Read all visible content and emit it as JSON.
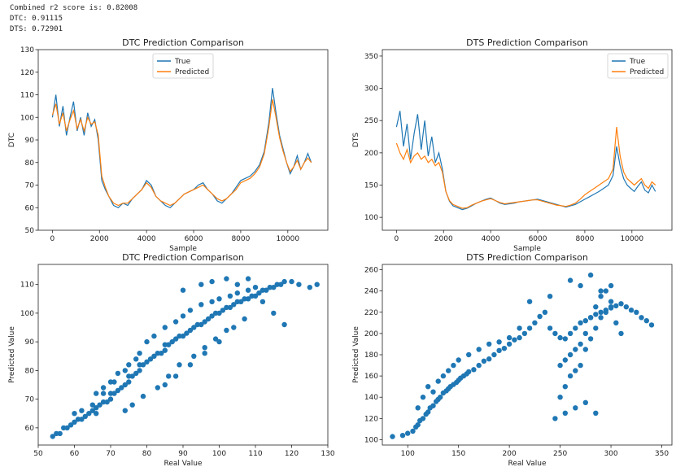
{
  "console": {
    "lines": [
      "Combined r2 score is: 0.82008",
      "DTC: 0.91115",
      "DTS: 0.72901"
    ]
  },
  "colors": {
    "true": "#1f77b4",
    "predicted": "#ff7f0e",
    "scatter": "#1f77b4"
  },
  "chart_data": [
    {
      "id": "dtc-line",
      "type": "line",
      "title": "DTC Prediction Comparison",
      "xlabel": "Sample",
      "ylabel": "DTC",
      "xlim": [
        -600,
        11700
      ],
      "ylim": [
        50,
        130
      ],
      "xticks": [
        0,
        2000,
        4000,
        6000,
        8000,
        10000
      ],
      "yticks": [
        50,
        60,
        70,
        80,
        90,
        100,
        110,
        120,
        130
      ],
      "legend": "top-center",
      "series": [
        {
          "name": "True",
          "x": [
            0,
            150,
            300,
            450,
            600,
            750,
            900,
            1050,
            1200,
            1350,
            1500,
            1650,
            1800,
            1950,
            2100,
            2250,
            2400,
            2600,
            2800,
            3000,
            3200,
            3400,
            3600,
            3800,
            4000,
            4200,
            4400,
            4600,
            4800,
            5000,
            5200,
            5400,
            5600,
            5800,
            6000,
            6200,
            6400,
            6600,
            6800,
            7000,
            7200,
            7400,
            7600,
            7800,
            8000,
            8200,
            8400,
            8600,
            8800,
            9000,
            9200,
            9350,
            9500,
            9650,
            9800,
            9950,
            10100,
            10250,
            10400,
            10550,
            10700,
            10850,
            11000
          ],
          "y": [
            100,
            110,
            96,
            105,
            92,
            100,
            107,
            94,
            100,
            92,
            102,
            96,
            99,
            90,
            72,
            68,
            65,
            61,
            60,
            62,
            61,
            64,
            66,
            68,
            72,
            70,
            65,
            63,
            61,
            60,
            62,
            64,
            66,
            67,
            68,
            70,
            71,
            68,
            66,
            63,
            62,
            64,
            66,
            69,
            72,
            73,
            74,
            76,
            79,
            85,
            98,
            113,
            102,
            92,
            86,
            80,
            75,
            78,
            83,
            77,
            80,
            84,
            80
          ]
        },
        {
          "name": "Predicted",
          "x": [
            0,
            150,
            300,
            450,
            600,
            750,
            900,
            1050,
            1200,
            1350,
            1500,
            1650,
            1800,
            1950,
            2100,
            2250,
            2400,
            2600,
            2800,
            3000,
            3200,
            3400,
            3600,
            3800,
            4000,
            4200,
            4400,
            4600,
            4800,
            5000,
            5200,
            5400,
            5600,
            5800,
            6000,
            6200,
            6400,
            6600,
            6800,
            7000,
            7200,
            7400,
            7600,
            7800,
            8000,
            8200,
            8400,
            8600,
            8800,
            9000,
            9200,
            9350,
            9500,
            9650,
            9800,
            9950,
            10100,
            10250,
            10400,
            10550,
            10700,
            10850,
            11000
          ],
          "y": [
            101,
            106,
            97,
            102,
            94,
            99,
            103,
            95,
            99,
            94,
            100,
            97,
            98,
            92,
            74,
            69,
            65,
            62,
            61,
            62,
            62,
            64,
            66,
            68,
            71,
            69,
            65,
            63,
            62,
            61,
            62,
            64,
            66,
            67,
            68,
            69,
            70,
            68,
            66,
            64,
            63,
            64,
            66,
            68,
            71,
            72,
            73,
            75,
            78,
            84,
            96,
            108,
            100,
            91,
            85,
            80,
            76,
            78,
            81,
            77,
            80,
            82,
            80
          ]
        }
      ]
    },
    {
      "id": "dts-line",
      "type": "line",
      "title": "DTS Prediction Comparison",
      "xlabel": "Sample",
      "ylabel": "DTS",
      "xlim": [
        -600,
        11700
      ],
      "ylim": [
        80,
        360
      ],
      "xticks": [
        0,
        2000,
        4000,
        6000,
        8000,
        10000
      ],
      "yticks": [
        100,
        150,
        200,
        250,
        300,
        350
      ],
      "legend": "top-right",
      "series": [
        {
          "name": "True",
          "x": [
            0,
            150,
            300,
            450,
            600,
            750,
            900,
            1050,
            1200,
            1350,
            1500,
            1650,
            1800,
            1950,
            2100,
            2250,
            2400,
            2600,
            2800,
            3000,
            3200,
            3400,
            3600,
            3800,
            4000,
            4200,
            4400,
            4600,
            4800,
            5000,
            5200,
            5400,
            5600,
            5800,
            6000,
            6200,
            6400,
            6600,
            6800,
            7000,
            7200,
            7400,
            7600,
            7800,
            8000,
            8200,
            8400,
            8600,
            8800,
            9000,
            9200,
            9350,
            9500,
            9650,
            9800,
            9950,
            10100,
            10250,
            10400,
            10550,
            10700,
            10850,
            11000
          ],
          "y": [
            240,
            265,
            210,
            245,
            190,
            230,
            260,
            205,
            250,
            195,
            225,
            185,
            200,
            175,
            140,
            125,
            118,
            115,
            112,
            114,
            118,
            122,
            125,
            128,
            130,
            126,
            122,
            120,
            121,
            122,
            124,
            125,
            126,
            127,
            128,
            126,
            124,
            122,
            120,
            118,
            116,
            118,
            120,
            124,
            128,
            132,
            136,
            140,
            145,
            150,
            165,
            210,
            180,
            160,
            150,
            145,
            140,
            148,
            155,
            142,
            138,
            150,
            140
          ]
        },
        {
          "name": "Predicted",
          "x": [
            0,
            150,
            300,
            450,
            600,
            750,
            900,
            1050,
            1200,
            1350,
            1500,
            1650,
            1800,
            1950,
            2100,
            2250,
            2400,
            2600,
            2800,
            3000,
            3200,
            3400,
            3600,
            3800,
            4000,
            4200,
            4400,
            4600,
            4800,
            5000,
            5200,
            5400,
            5600,
            5800,
            6000,
            6200,
            6400,
            6600,
            6800,
            7000,
            7200,
            7400,
            7600,
            7800,
            8000,
            8200,
            8400,
            8600,
            8800,
            9000,
            9200,
            9350,
            9500,
            9650,
            9800,
            9950,
            10100,
            10250,
            10400,
            10550,
            10700,
            10850,
            11000
          ],
          "y": [
            215,
            200,
            190,
            205,
            185,
            195,
            200,
            190,
            195,
            185,
            190,
            180,
            185,
            170,
            140,
            126,
            120,
            117,
            114,
            115,
            119,
            122,
            125,
            127,
            129,
            126,
            123,
            121,
            122,
            123,
            124,
            125,
            126,
            127,
            127,
            125,
            123,
            121,
            119,
            118,
            117,
            119,
            122,
            128,
            135,
            140,
            145,
            150,
            155,
            160,
            175,
            240,
            195,
            170,
            160,
            155,
            150,
            155,
            160,
            150,
            145,
            155,
            150
          ]
        }
      ]
    },
    {
      "id": "dtc-scatter",
      "type": "scatter",
      "title": "DTC Prediction Comparison",
      "xlabel": "Real Value",
      "ylabel": "Predicted Value",
      "xlim": [
        50,
        130
      ],
      "ylim": [
        54,
        117
      ],
      "xticks": [
        50,
        60,
        70,
        80,
        90,
        100,
        110,
        120,
        130
      ],
      "yticks": [
        60,
        70,
        80,
        90,
        100,
        110
      ],
      "series": [
        {
          "x": [
            54,
            55,
            56,
            57,
            58,
            59,
            60,
            61,
            62,
            63,
            64,
            65,
            66,
            66,
            67,
            68,
            69,
            70,
            70,
            71,
            72,
            73,
            74,
            75,
            75,
            76,
            77,
            78,
            78,
            79,
            80,
            81,
            82,
            83,
            84,
            85,
            85,
            86,
            87,
            88,
            89,
            90,
            91,
            92,
            93,
            94,
            95,
            96,
            97,
            98,
            99,
            100,
            101,
            102,
            103,
            104,
            105,
            106,
            107,
            108,
            109,
            110,
            111,
            112,
            113,
            114,
            115,
            116,
            117,
            118,
            120,
            122,
            125,
            127,
            60,
            62,
            65,
            68,
            70,
            72,
            75,
            78,
            80,
            82,
            85,
            88,
            90,
            92,
            95,
            98,
            100,
            103,
            105,
            108,
            110,
            74,
            76,
            79,
            83,
            86,
            89,
            93,
            96,
            99,
            102,
            85,
            88,
            92,
            96,
            100,
            104,
            107,
            90,
            95,
            98,
            102,
            105,
            108,
            112,
            115,
            118,
            66,
            68,
            71,
            74,
            77
          ],
          "y": [
            57,
            58,
            58,
            60,
            60,
            61,
            62,
            63,
            63,
            64,
            65,
            66,
            65,
            67,
            68,
            69,
            69,
            70,
            72,
            72,
            73,
            74,
            75,
            76,
            78,
            78,
            79,
            80,
            82,
            82,
            83,
            84,
            85,
            86,
            86,
            87,
            89,
            89,
            90,
            91,
            92,
            92,
            93,
            94,
            95,
            96,
            96,
            97,
            98,
            99,
            100,
            100,
            101,
            102,
            102,
            103,
            104,
            104,
            105,
            105,
            106,
            106,
            107,
            108,
            108,
            109,
            109,
            110,
            110,
            111,
            111,
            110,
            109,
            110,
            65,
            66,
            68,
            72,
            76,
            79,
            82,
            86,
            90,
            92,
            95,
            97,
            99,
            101,
            103,
            104,
            105,
            106,
            107,
            108,
            109,
            66,
            68,
            71,
            74,
            78,
            82,
            85,
            88,
            91,
            94,
            75,
            78,
            82,
            86,
            90,
            95,
            98,
            108,
            110,
            111,
            112,
            110,
            112,
            104,
            100,
            96,
            72,
            74,
            76,
            80,
            84
          ]
        }
      ]
    },
    {
      "id": "dts-scatter",
      "type": "scatter",
      "title": "DTS Prediction Comparison",
      "xlabel": "Real Value",
      "ylabel": "Predicted Value",
      "xlim": [
        75,
        360
      ],
      "ylim": [
        95,
        265
      ],
      "xticks": [
        100,
        150,
        200,
        250,
        300,
        350
      ],
      "yticks": [
        100,
        120,
        140,
        160,
        180,
        200,
        220,
        240,
        260
      ],
      "series": [
        {
          "x": [
            85,
            95,
            100,
            105,
            108,
            110,
            112,
            115,
            118,
            120,
            122,
            125,
            128,
            130,
            132,
            135,
            138,
            140,
            142,
            145,
            148,
            150,
            152,
            155,
            158,
            160,
            165,
            170,
            175,
            180,
            185,
            190,
            195,
            200,
            205,
            210,
            215,
            220,
            225,
            230,
            235,
            240,
            245,
            250,
            255,
            260,
            265,
            270,
            275,
            280,
            285,
            290,
            295,
            300,
            305,
            310,
            315,
            320,
            325,
            330,
            335,
            340,
            110,
            115,
            120,
            125,
            130,
            135,
            140,
            145,
            150,
            160,
            170,
            180,
            190,
            200,
            210,
            220,
            240,
            250,
            255,
            260,
            265,
            270,
            275,
            280,
            285,
            290,
            295,
            300,
            250,
            255,
            260,
            265,
            270,
            275,
            280,
            285,
            290,
            295,
            300,
            305,
            310,
            260,
            270,
            280,
            290,
            300,
            245,
            255,
            265,
            275,
            285
          ],
          "y": [
            103,
            104,
            106,
            108,
            112,
            114,
            118,
            120,
            124,
            126,
            130,
            132,
            136,
            138,
            140,
            144,
            146,
            148,
            150,
            152,
            154,
            156,
            158,
            160,
            162,
            164,
            166,
            170,
            174,
            176,
            180,
            184,
            186,
            190,
            194,
            196,
            200,
            205,
            210,
            216,
            220,
            205,
            200,
            196,
            195,
            200,
            205,
            210,
            212,
            215,
            218,
            220,
            222,
            224,
            226,
            228,
            225,
            222,
            220,
            215,
            212,
            208,
            130,
            140,
            150,
            145,
            155,
            160,
            165,
            170,
            175,
            180,
            185,
            190,
            192,
            196,
            205,
            230,
            235,
            170,
            175,
            180,
            185,
            190,
            200,
            215,
            225,
            235,
            240,
            245,
            140,
            150,
            160,
            165,
            170,
            185,
            195,
            205,
            215,
            220,
            225,
            210,
            200,
            250,
            245,
            255,
            240,
            230,
            120,
            125,
            130,
            135,
            125
          ]
        }
      ]
    }
  ]
}
